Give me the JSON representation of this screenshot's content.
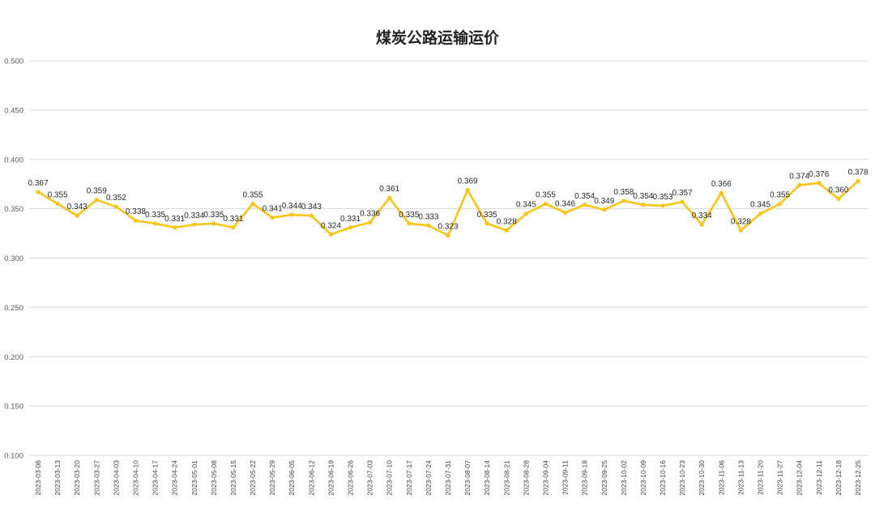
{
  "chart_data": {
    "type": "line",
    "title": "煤炭公路运输运价",
    "x": [
      "2023-03-06",
      "2023-03-13",
      "2023-03-20",
      "2023-03-27",
      "2023-04-03",
      "2023-04-10",
      "2023-04-17",
      "2023-04-24",
      "2023-05-01",
      "2023-05-08",
      "2023-05-15",
      "2023-05-22",
      "2023-05-29",
      "2023-06-05",
      "2023-06-12",
      "2023-06-19",
      "2023-06-26",
      "2023-07-03",
      "2023-07-10",
      "2023-07-17",
      "2023-07-24",
      "2023-07-31",
      "2023-08-07",
      "2023-08-14",
      "2023-08-21",
      "2023-08-28",
      "2023-09-04",
      "2023-09-11",
      "2023-09-18",
      "2023-09-25",
      "2023-10-02",
      "2023-10-09",
      "2023-10-16",
      "2023-10-23",
      "2023-10-30",
      "2023-11-06",
      "2023-11-13",
      "2023-11-20",
      "2023-11-27",
      "2023-12-04",
      "2023-12-11",
      "2023-12-18",
      "2023-12-25"
    ],
    "series": [
      {
        "values": [
          0.367,
          0.355,
          0.343,
          0.359,
          0.352,
          0.338,
          0.335,
          0.331,
          0.334,
          0.335,
          0.331,
          0.355,
          0.341,
          0.344,
          0.343,
          0.324,
          0.331,
          0.336,
          0.361,
          0.335,
          0.333,
          0.323,
          0.369,
          0.335,
          0.328,
          0.345,
          0.355,
          0.346,
          0.354,
          0.349,
          0.358,
          0.354,
          0.353,
          0.357,
          0.334,
          0.366,
          0.328,
          0.345,
          0.355,
          0.374,
          0.376,
          0.36,
          0.378
        ],
        "labels": [
          "0.367",
          "0.355",
          "0.343",
          "0.359",
          "0.352",
          "0.338",
          "0.335",
          "0.331",
          "0.334",
          "0.335",
          "0.331",
          "0.355",
          "0.341",
          "0.344",
          "0.343",
          "0.324",
          "0.331",
          "0.336",
          "0.361",
          "0.335",
          "0.333",
          "0.323",
          "0.369",
          "0.335",
          "0.328",
          "0.345",
          "0.355",
          "0.346",
          "0.354",
          "0.349",
          "0.358",
          "0.354",
          "0.353",
          "0.357",
          "0.334",
          "0.366",
          "0.328",
          "0.345",
          "0.355",
          "0.374",
          "0.376",
          "0.360",
          "0.378"
        ]
      }
    ],
    "ylim": [
      0.1,
      0.5
    ],
    "yticks": [
      "0.100",
      "0.150",
      "0.200",
      "0.250",
      "0.300",
      "0.350",
      "0.400",
      "0.450",
      "0.500"
    ],
    "ytick_values": [
      0.1,
      0.15,
      0.2,
      0.25,
      0.3,
      0.35,
      0.4,
      0.45,
      0.5
    ],
    "grid": true,
    "legend": "none"
  },
  "colors": {
    "line": "#F5C518",
    "grid": "#D9D9D9"
  }
}
